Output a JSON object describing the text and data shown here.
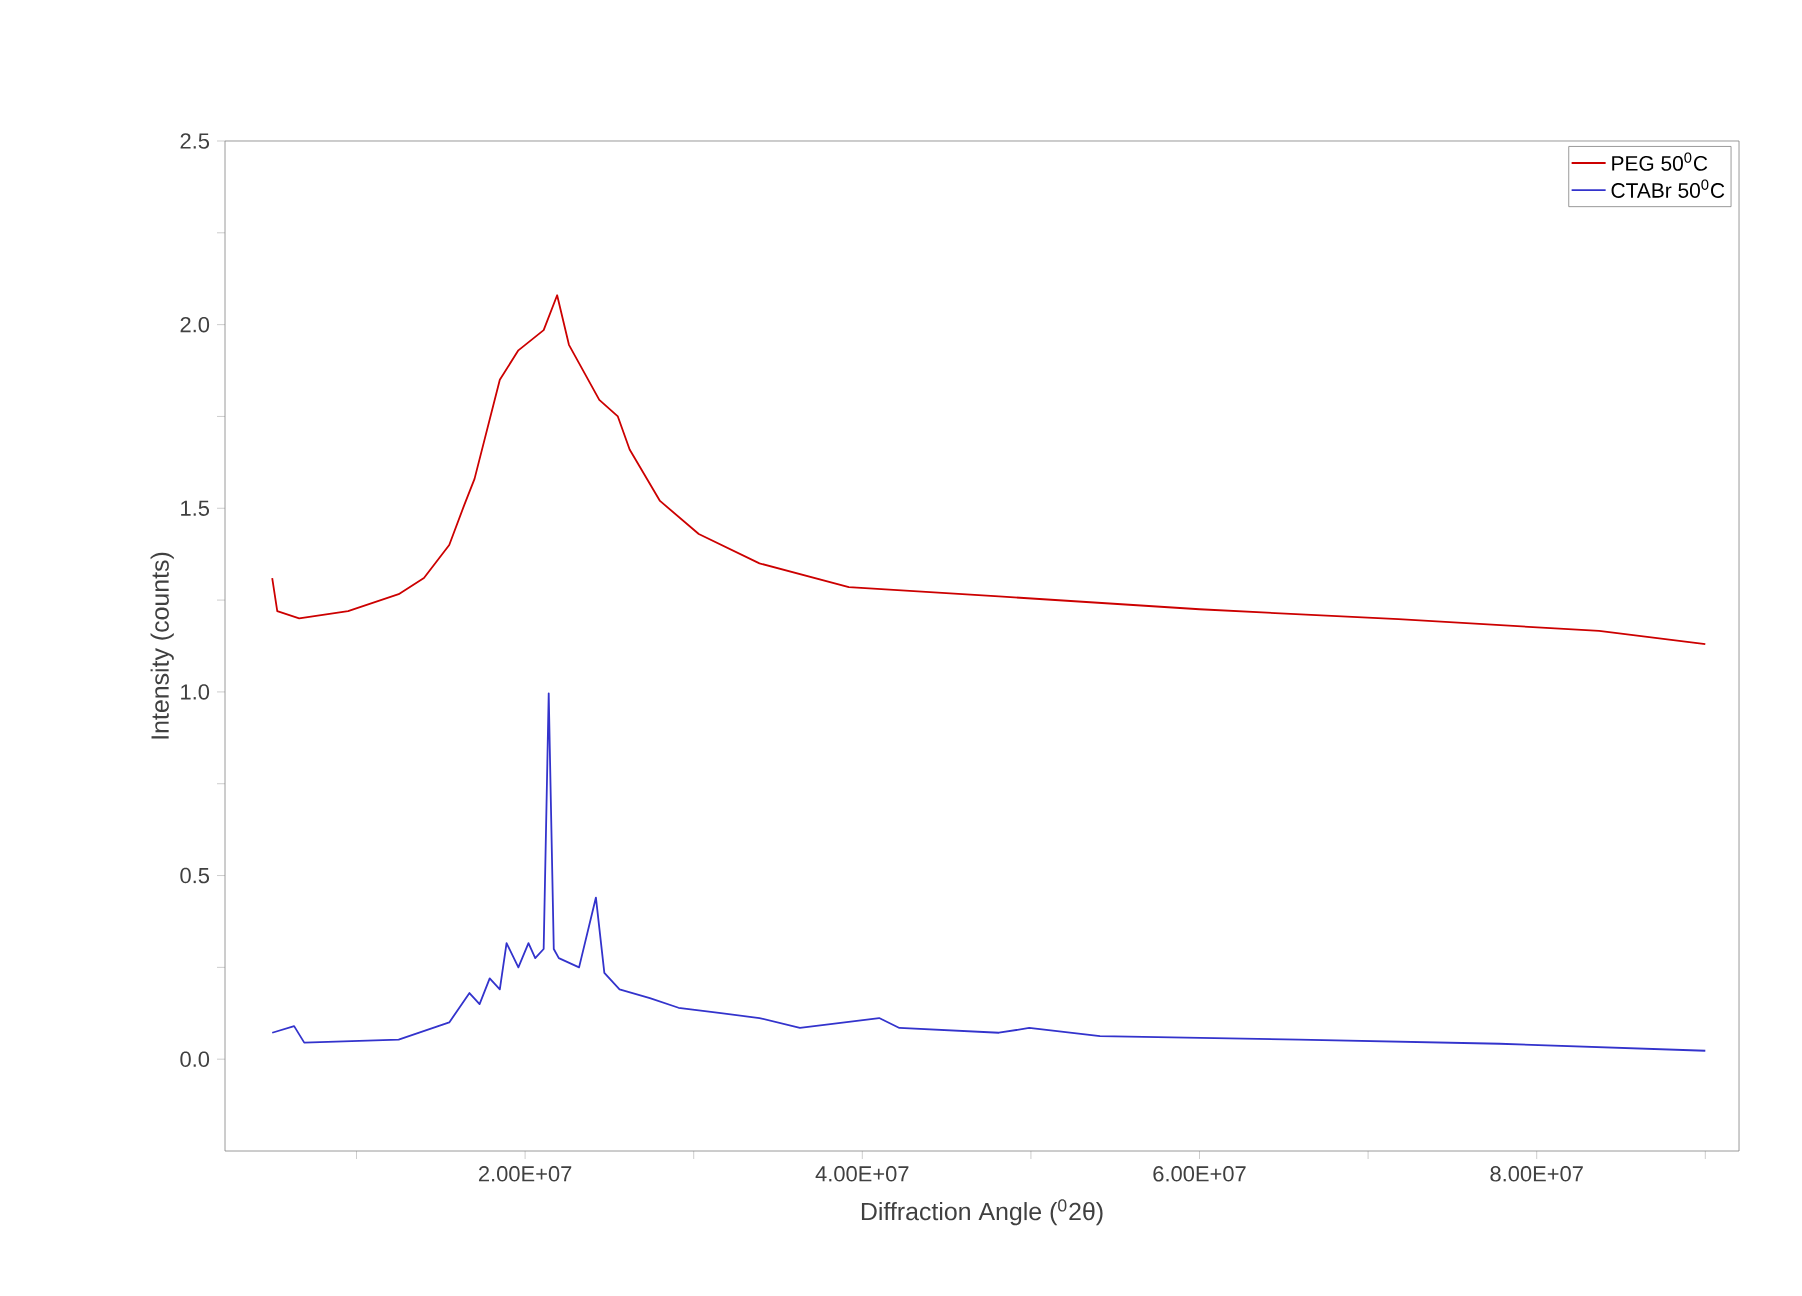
{
  "chart_data": {
    "type": "line",
    "xlabel": "Diffraction Angle ($^{0}$2θ)",
    "ylabel": "Intensity (counts)",
    "xlim": [
      2200000,
      92000000
    ],
    "ylim": [
      -0.25,
      2.5
    ],
    "xticks": [
      {
        "value": 10000000,
        "label": null
      },
      {
        "value": 20000000,
        "label": "2.00E+07"
      },
      {
        "value": 30000000,
        "label": null
      },
      {
        "value": 40000000,
        "label": "4.00E+07"
      },
      {
        "value": 50000000,
        "label": null
      },
      {
        "value": 60000000,
        "label": "6.00E+07"
      },
      {
        "value": 70000000,
        "label": null
      },
      {
        "value": 80000000,
        "label": "8.00E+07"
      },
      {
        "value": 90000000,
        "label": null
      }
    ],
    "yticks": [
      {
        "value": 0,
        "label": "0.0"
      },
      {
        "value": 0.25,
        "label": null
      },
      {
        "value": 0.5,
        "label": "0.5"
      },
      {
        "value": 0.75,
        "label": null
      },
      {
        "value": 1,
        "label": "1.0"
      },
      {
        "value": 1.25,
        "label": null
      },
      {
        "value": 1.5,
        "label": "1.5"
      },
      {
        "value": 1.75,
        "label": null
      },
      {
        "value": 2,
        "label": "2.0"
      },
      {
        "value": 2.25,
        "label": null
      },
      {
        "value": 2.5,
        "label": "2.5"
      }
    ],
    "legend": "top right",
    "grid": false,
    "marker": "none",
    "line_style": "solid",
    "series": [
      {
        "name": "PEG 50$^{0}$C",
        "color": "#cc0000",
        "x": [
          5000000,
          5300000,
          6600000,
          9500000,
          12500000,
          14000000,
          15500000,
          16400000,
          17000000,
          18500000,
          19600000,
          21100000,
          21900000,
          22600000,
          24400000,
          25500000,
          26200000,
          28000000,
          30300000,
          33900000,
          39200000,
          48100000,
          60000000,
          71800000,
          83700000,
          90000000
        ],
        "values": [
          1.31,
          1.22,
          1.2,
          1.22,
          1.266,
          1.31,
          1.4,
          1.51,
          1.58,
          1.85,
          1.93,
          1.985,
          2.08,
          1.945,
          1.795,
          1.75,
          1.66,
          1.52,
          1.43,
          1.35,
          1.285,
          1.26,
          1.225,
          1.198,
          1.166,
          1.13
        ]
      },
      {
        "name": "CTABr 50$^{0}$C",
        "color": "#3333cc",
        "x": [
          5000000,
          6300000,
          6900000,
          12500000,
          15500000,
          16700000,
          17300000,
          17900000,
          18500000,
          18900000,
          19600000,
          20200000,
          20600000,
          21100000,
          21400000,
          21700000,
          22000000,
          23200000,
          24200000,
          24700000,
          25600000,
          27400000,
          29100000,
          31500000,
          33900000,
          36300000,
          41000000,
          42200000,
          48100000,
          49900000,
          54100000,
          65900000,
          77800000,
          90000000
        ],
        "values": [
          0.072,
          0.09,
          0.045,
          0.053,
          0.1,
          0.18,
          0.15,
          0.22,
          0.19,
          0.316,
          0.25,
          0.316,
          0.275,
          0.3,
          0.996,
          0.3,
          0.275,
          0.25,
          0.44,
          0.235,
          0.19,
          0.166,
          0.14,
          0.126,
          0.112,
          0.085,
          0.112,
          0.085,
          0.072,
          0.085,
          0.063,
          0.053,
          0.042,
          0.023
        ]
      }
    ]
  }
}
